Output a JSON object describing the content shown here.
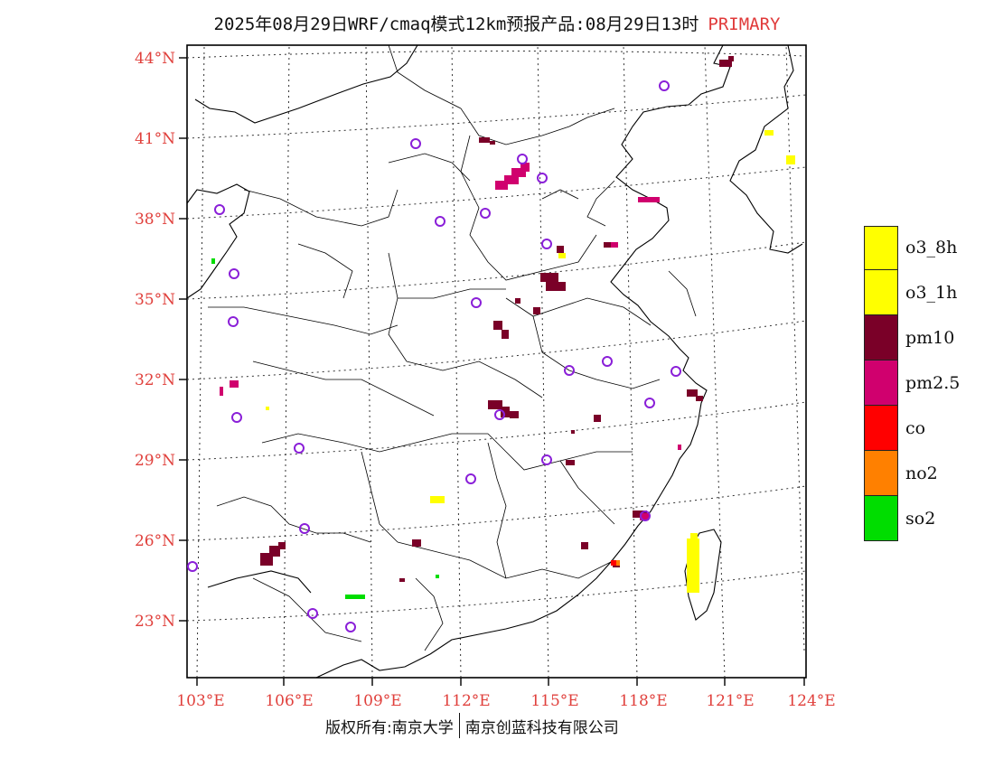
{
  "header": {
    "title": "2025年08月29日WRF/cmaq模式12km预报产品:08月29日13时",
    "tag": "PRIMARY"
  },
  "map": {
    "lat_labels": [
      "44°N",
      "41°N",
      "38°N",
      "35°N",
      "32°N",
      "29°N",
      "26°N",
      "23°N"
    ],
    "lon_labels": [
      "103°E",
      "106°E",
      "109°E",
      "112°E",
      "115°E",
      "118°E",
      "121°E",
      "124°E"
    ]
  },
  "legend": {
    "items": [
      {
        "label": "o3_8h",
        "color": "#ffff00"
      },
      {
        "label": "o3_1h",
        "color": "#ffff00"
      },
      {
        "label": "pm10",
        "color": "#7a0028"
      },
      {
        "label": "pm2.5",
        "color": "#d0006e"
      },
      {
        "label": "co",
        "color": "#ff0000"
      },
      {
        "label": "no2",
        "color": "#ff8000"
      },
      {
        "label": "so2",
        "color": "#00dd00"
      }
    ]
  },
  "footer": {
    "left": "版权所有:南京大学",
    "right": "南京创蓝科技有限公司"
  },
  "colors": {
    "axis_label": "#e0403c",
    "station_ring": "#8a1fd8"
  }
}
